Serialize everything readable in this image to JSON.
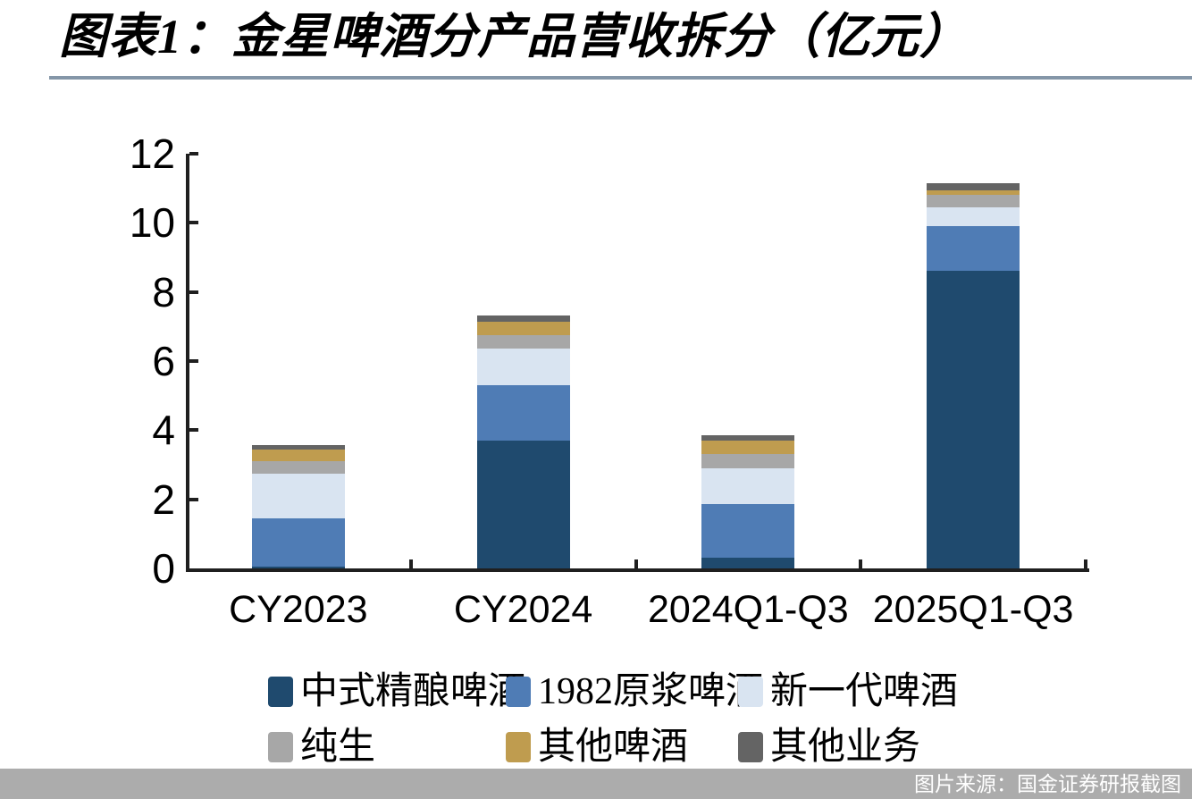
{
  "title": "图表1：金星啤酒分产品营收拆分（亿元）",
  "source_bar": {
    "text": "图片来源：国金证券研报截图",
    "bg_color": "#ACACAC",
    "text_color": "#FFFFFF"
  },
  "colors": {
    "axis": "#1F1F1F",
    "title_rule": "#8496A8"
  },
  "chart_data": {
    "type": "bar",
    "stacked": true,
    "title": "图表1：金星啤酒分产品营收拆分（亿元）",
    "xlabel": "",
    "ylabel": "",
    "unit": "亿元",
    "categories": [
      "CY2023",
      "CY2024",
      "2024Q1-Q3",
      "2025Q1-Q3"
    ],
    "series": [
      {
        "name": "中式精酿啤酒",
        "color": "#1F4A6E",
        "values": [
          0.05,
          3.7,
          0.3,
          8.6
        ]
      },
      {
        "name": "1982原浆啤酒",
        "color": "#4F7CB5",
        "values": [
          1.4,
          1.6,
          1.55,
          1.3
        ]
      },
      {
        "name": "新一代啤酒",
        "color": "#D9E4F1",
        "values": [
          1.3,
          1.05,
          1.05,
          0.55
        ]
      },
      {
        "name": "纯生",
        "color": "#A7A7A7",
        "values": [
          0.35,
          0.4,
          0.4,
          0.35
        ]
      },
      {
        "name": "其他啤酒",
        "color": "#BF9C4F",
        "values": [
          0.33,
          0.4,
          0.4,
          0.15
        ]
      },
      {
        "name": "其他业务",
        "color": "#646464",
        "values": [
          0.15,
          0.17,
          0.15,
          0.2
        ]
      }
    ],
    "totals": [
      3.58,
      7.32,
      3.85,
      11.15
    ],
    "ylim": [
      0,
      12
    ],
    "yticks": [
      0,
      2,
      4,
      6,
      8,
      10,
      12
    ],
    "grid": false,
    "legend_position": "bottom"
  }
}
